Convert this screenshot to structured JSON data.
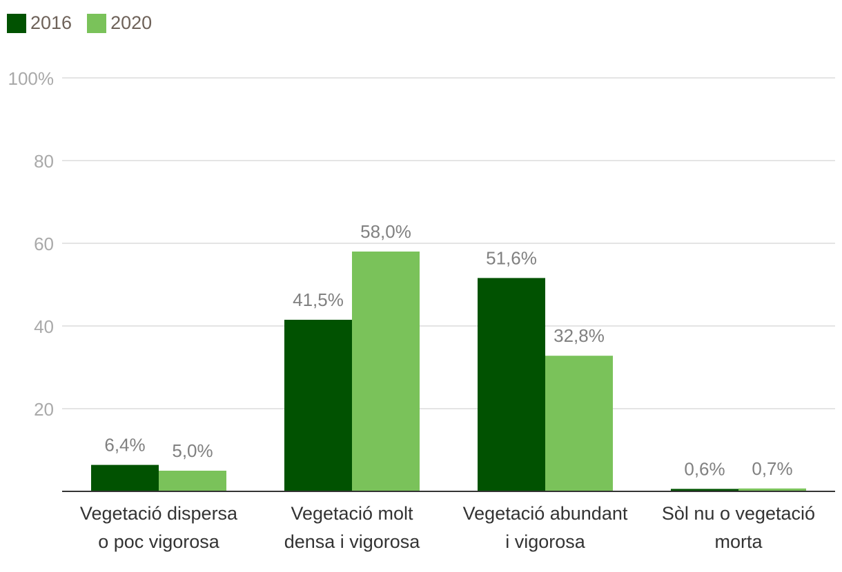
{
  "chart_data": {
    "type": "bar",
    "categories": [
      [
        "Vegetació dispersa",
        "o poc vigorosa"
      ],
      [
        "Vegetació molt",
        "densa i vigorosa"
      ],
      [
        "Vegetació abundant",
        "i vigorosa"
      ],
      [
        "Sòl nu o vegetació",
        "morta"
      ]
    ],
    "series": [
      {
        "name": "2016",
        "color": "#015201",
        "values": [
          6.4,
          41.5,
          51.6,
          0.6
        ],
        "labels": [
          "6,4%",
          "41,5%",
          "51,6%",
          "0,6%"
        ]
      },
      {
        "name": "2020",
        "color": "#7ac25a",
        "values": [
          5.0,
          58.0,
          32.8,
          0.7
        ],
        "labels": [
          "5,0%",
          "58,0%",
          "32,8%",
          "0,7%"
        ]
      }
    ],
    "yticks": [
      {
        "value": 20,
        "label": "20"
      },
      {
        "value": 40,
        "label": "40"
      },
      {
        "value": 60,
        "label": "60"
      },
      {
        "value": 80,
        "label": "80"
      },
      {
        "value": 100,
        "label": "100%"
      }
    ],
    "ylim": [
      0,
      100
    ],
    "legend_position": "top-left",
    "grid": true
  }
}
